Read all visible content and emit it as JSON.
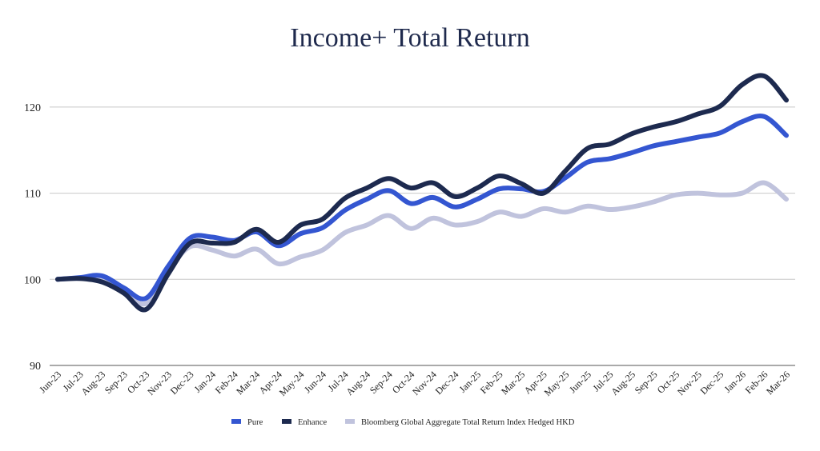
{
  "chart_data": {
    "type": "line",
    "title": "Income+ Total Return",
    "xlabel": "",
    "ylabel": "",
    "ylim": [
      90,
      125
    ],
    "yticks": [
      90,
      100,
      110,
      120
    ],
    "grid": true,
    "legend_position": "bottom",
    "categories": [
      "Jun-23",
      "Jul-23",
      "Aug-23",
      "Sep-23",
      "Oct-23",
      "Nov-23",
      "Dec-23",
      "Jan-24",
      "Feb-24",
      "Mar-24",
      "Apr-24",
      "May-24",
      "Jun-24",
      "Jul-24",
      "Aug-24",
      "Sep-24",
      "Oct-24",
      "Nov-24",
      "Dec-24",
      "Jan-25",
      "Feb-25",
      "Mar-25",
      "Apr-25",
      "May-25",
      "Jun-25",
      "Jul-25",
      "Aug-25",
      "Sep-25",
      "Oct-25",
      "Nov-25",
      "Dec-25",
      "Jan-26",
      "Feb-26",
      "Mar-26"
    ],
    "series": [
      {
        "name": "Pure",
        "color": "#3456d1",
        "values": [
          100.0,
          100.2,
          100.4,
          99.0,
          97.8,
          101.5,
          104.8,
          104.9,
          104.5,
          105.5,
          103.9,
          105.3,
          106.0,
          108.0,
          109.3,
          110.3,
          108.8,
          109.5,
          108.4,
          109.3,
          110.5,
          110.5,
          110.2,
          111.8,
          113.6,
          114.0,
          114.7,
          115.5,
          116.0,
          116.5,
          117.0,
          118.3,
          118.9,
          116.7
        ]
      },
      {
        "name": "Enhance",
        "color": "#1d2a4f",
        "values": [
          100.0,
          100.1,
          99.7,
          98.4,
          96.5,
          100.6,
          104.2,
          104.2,
          104.3,
          105.8,
          104.3,
          106.3,
          107.0,
          109.4,
          110.6,
          111.7,
          110.6,
          111.2,
          109.6,
          110.6,
          112.0,
          111.1,
          110.0,
          112.6,
          115.2,
          115.7,
          116.9,
          117.7,
          118.3,
          119.2,
          120.1,
          122.6,
          123.6,
          120.8
        ]
      },
      {
        "name": "Bloomberg Global Aggregate Total Return Index Hedged HKD",
        "color": "#c0c3dd",
        "values": [
          100.0,
          100.1,
          100.0,
          98.5,
          97.2,
          101.0,
          103.8,
          103.4,
          102.7,
          103.5,
          101.8,
          102.6,
          103.4,
          105.4,
          106.3,
          107.4,
          105.9,
          107.1,
          106.3,
          106.7,
          107.8,
          107.3,
          108.2,
          107.8,
          108.5,
          108.1,
          108.4,
          109.0,
          109.8,
          110.0,
          109.8,
          110.0,
          111.2,
          109.3
        ]
      }
    ]
  }
}
